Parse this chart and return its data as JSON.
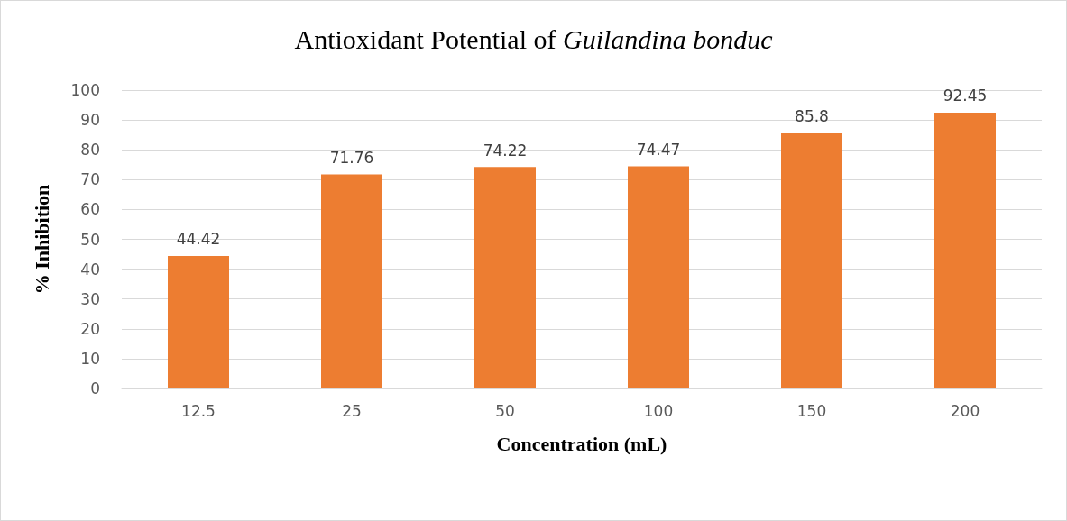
{
  "chart_data": {
    "type": "bar",
    "title": "Antioxidant Potential of Guilandina bonduc",
    "xlabel": "Concentration (mL)",
    "ylabel": "% Inhibition",
    "categories": [
      "12.5",
      "25",
      "50",
      "100",
      "150",
      "200"
    ],
    "values": [
      44.42,
      71.76,
      74.22,
      74.47,
      85.8,
      92.45
    ],
    "color": "#ed7d31",
    "ylim": [
      0,
      100
    ],
    "yticks": [
      0,
      10,
      20,
      30,
      40,
      50,
      60,
      70,
      80,
      90,
      100
    ],
    "grid": "y",
    "data_labels": true
  }
}
